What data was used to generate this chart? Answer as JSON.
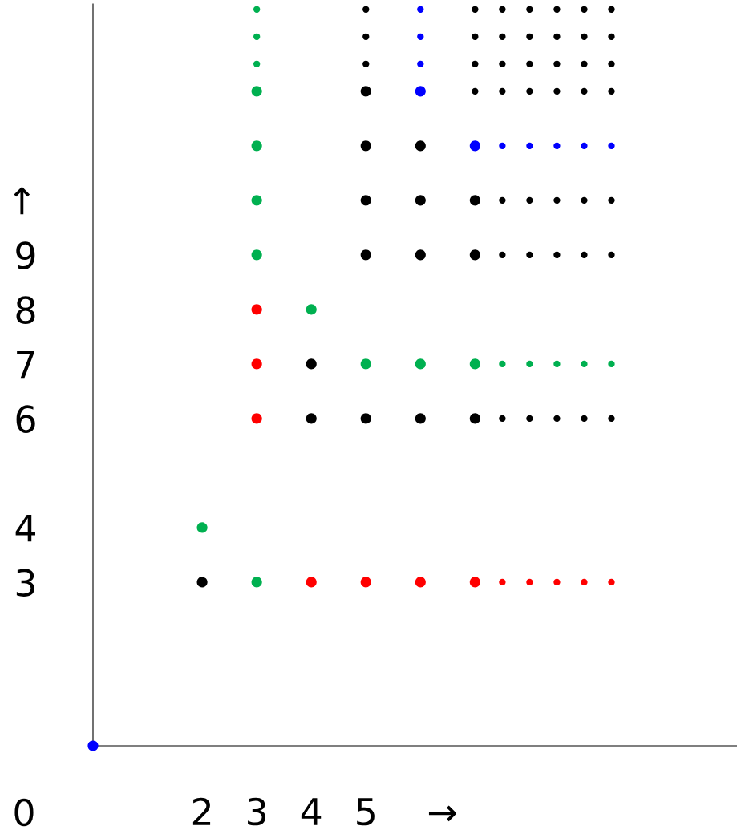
{
  "chart_data": {
    "type": "bubble",
    "xlim": [
      0,
      11.8
    ],
    "ylim": [
      0,
      13.6
    ],
    "xticks": [
      2,
      3,
      4,
      5,
      {
        "value": 6.4,
        "label": "→"
      }
    ],
    "yticks": [
      3,
      4,
      6,
      7,
      8,
      9,
      {
        "value": 10,
        "label": "↑"
      }
    ],
    "annotations": [
      "0"
    ],
    "grid": false,
    "series": [
      {
        "color": "#0000ff",
        "x": [
          0,
          6,
          6,
          6,
          6,
          7,
          7.5,
          8,
          8.5,
          9,
          9.5
        ],
        "values": [
          0,
          12,
          12.5,
          13,
          13.5,
          11,
          11,
          11,
          11,
          11,
          11
        ],
        "sizes": [
          1,
          1,
          0.4,
          0.4,
          0.4,
          1,
          0.4,
          0.4,
          0.4,
          0.4,
          0.4
        ]
      },
      {
        "color": "#00b050",
        "x": [
          2,
          3,
          3,
          3,
          3,
          3,
          3,
          3,
          3,
          4,
          5,
          6,
          7,
          7.5,
          8,
          8.5,
          9,
          9.5
        ],
        "values": [
          4,
          3,
          9,
          10,
          11,
          12,
          12.5,
          13,
          13.5,
          8,
          7,
          7,
          7,
          7,
          7,
          7,
          7,
          7
        ],
        "sizes": [
          1,
          1,
          1,
          1,
          1,
          1,
          0.4,
          0.4,
          0.4,
          1,
          1,
          1,
          1,
          0.4,
          0.4,
          0.4,
          0.4,
          0.4
        ]
      },
      {
        "color": "#ff0000",
        "x": [
          3,
          3,
          3,
          4,
          5,
          6,
          7,
          7.5,
          8,
          8.5,
          9,
          9.5
        ],
        "values": [
          6,
          7,
          8,
          3,
          3,
          3,
          3,
          3,
          3,
          3,
          3,
          3
        ],
        "sizes": [
          1,
          1,
          1,
          1,
          1,
          1,
          1,
          0.4,
          0.4,
          0.4,
          0.4,
          0.4
        ]
      },
      {
        "color": "#000000",
        "x": [
          2,
          4,
          4,
          5,
          5,
          5,
          5,
          5,
          5,
          5,
          5,
          6,
          6,
          6,
          6,
          7,
          7,
          7,
          7,
          7,
          7,
          7,
          7.5,
          7.5,
          7.5,
          7.5,
          7.5,
          7.5,
          7.5,
          8,
          8,
          8,
          8,
          8,
          8,
          8,
          8.5,
          8.5,
          8.5,
          8.5,
          8.5,
          8.5,
          8.5,
          9,
          9,
          9,
          9,
          9,
          9,
          9,
          9.5,
          9.5,
          9.5,
          9.5,
          9.5,
          9.5,
          9.5
        ],
        "values": [
          3,
          6,
          7,
          6,
          9,
          10,
          11,
          12,
          12.5,
          13,
          13.5,
          6,
          9,
          10,
          11,
          6,
          9,
          10,
          12,
          12.5,
          13,
          13.5,
          6,
          9,
          10,
          12,
          12.5,
          13,
          13.5,
          6,
          9,
          10,
          12,
          12.5,
          13,
          13.5,
          6,
          9,
          10,
          12,
          12.5,
          13,
          13.5,
          6,
          9,
          10,
          12,
          12.5,
          13,
          13.5,
          6,
          9,
          10,
          12,
          12.5,
          13,
          13.5
        ],
        "sizes": [
          1,
          1,
          1,
          1,
          1,
          1,
          1,
          1,
          0.4,
          0.4,
          0.4,
          1,
          1,
          1,
          1,
          1,
          1,
          1,
          0.4,
          0.4,
          0.4,
          0.4,
          0.4,
          0.4,
          0.4,
          0.4,
          0.4,
          0.4,
          0.4,
          0.4,
          0.4,
          0.4,
          0.4,
          0.4,
          0.4,
          0.4,
          0.4,
          0.4,
          0.4,
          0.4,
          0.4,
          0.4,
          0.4,
          0.4,
          0.4,
          0.4,
          0.4,
          0.4,
          0.4,
          0.4,
          0.4,
          0.4,
          0.4,
          0.4,
          0.4,
          0.4,
          0.4
        ]
      }
    ]
  }
}
